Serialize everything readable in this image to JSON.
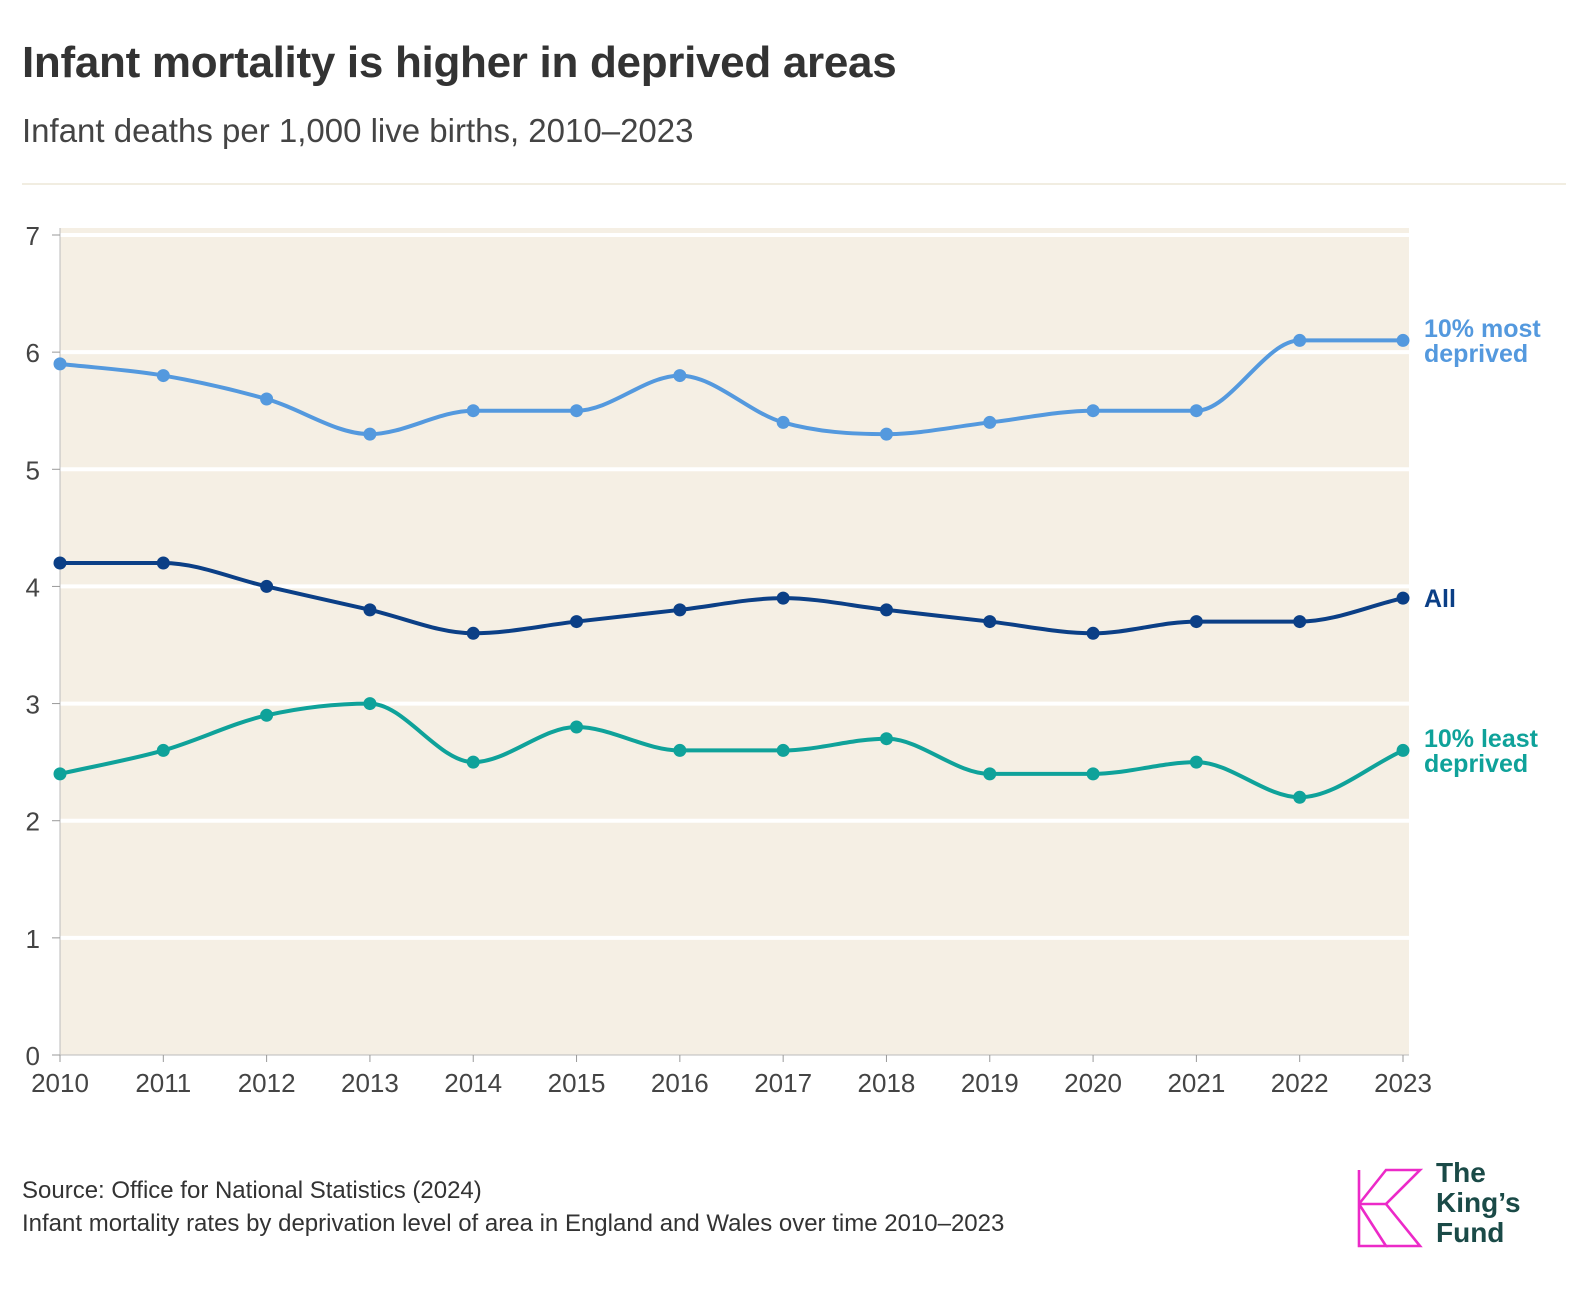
{
  "header": {
    "title": "Infant mortality is higher in deprived areas",
    "subtitle": "Infant deaths per 1,000 live births, 2010–2023"
  },
  "chart_data": {
    "type": "line",
    "x": [
      "2010",
      "2011",
      "2012",
      "2013",
      "2014",
      "2015",
      "2016",
      "2017",
      "2018",
      "2019",
      "2020",
      "2021",
      "2022",
      "2023"
    ],
    "ylim": [
      0,
      7
    ],
    "yticks": [
      "0",
      "1",
      "2",
      "3",
      "4",
      "5",
      "6",
      "7"
    ],
    "grid": true,
    "series": [
      {
        "name": "10% most deprived",
        "label_lines": [
          "10% most",
          "deprived"
        ],
        "color": "#5499de",
        "values": [
          5.9,
          5.8,
          5.6,
          5.3,
          5.5,
          5.5,
          5.8,
          5.4,
          5.3,
          5.4,
          5.5,
          5.5,
          6.1,
          6.1
        ]
      },
      {
        "name": "All",
        "label_lines": [
          "All"
        ],
        "color": "#0b3f86",
        "values": [
          4.2,
          4.2,
          4.0,
          3.8,
          3.6,
          3.7,
          3.8,
          3.9,
          3.8,
          3.7,
          3.6,
          3.7,
          3.7,
          3.9
        ]
      },
      {
        "name": "10% least deprived",
        "label_lines": [
          "10% least",
          "deprived"
        ],
        "color": "#0fa29a",
        "values": [
          2.4,
          2.6,
          2.9,
          3.0,
          2.5,
          2.8,
          2.6,
          2.6,
          2.7,
          2.4,
          2.4,
          2.5,
          2.2,
          2.6
        ]
      }
    ]
  },
  "footer": {
    "source": "Source: Office for National Statistics (2024)",
    "note": "Infant mortality rates by deprivation level of area in England and Wales over time 2010–2023"
  },
  "logo": {
    "line1": "The",
    "line2": "King’s",
    "line3": "Fund",
    "color": "#ec2ac8"
  }
}
